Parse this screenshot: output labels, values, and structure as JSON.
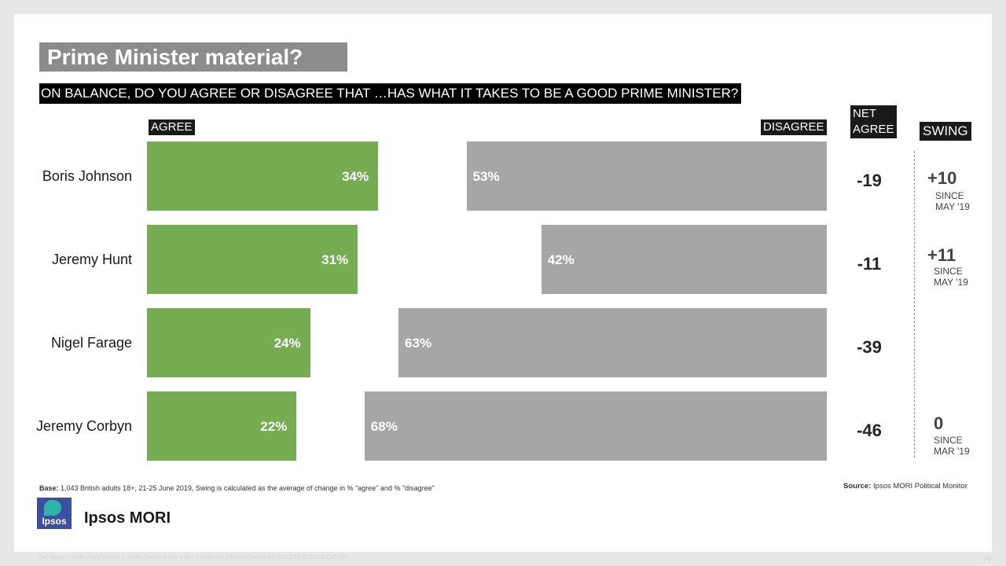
{
  "title": "Prime Minister material?",
  "question": "ON BALANCE, DO YOU AGREE OR DISAGREE THAT …HAS WHAT IT TAKES TO BE A GOOD PRIME MINISTER?",
  "headers": {
    "agree": "AGREE",
    "disagree": "DISAGREE",
    "net_line1": "NET",
    "net_line2": "AGREE",
    "swing": "SWING"
  },
  "chart_data": {
    "type": "bar",
    "orientation": "horizontal",
    "categories": [
      "Boris Johnson",
      "Jeremy Hunt",
      "Nigel Farage",
      "Jeremy Corbyn"
    ],
    "series": [
      {
        "name": "AGREE",
        "values": [
          34,
          31,
          24,
          22
        ]
      },
      {
        "name": "DISAGREE",
        "values": [
          53,
          42,
          63,
          68
        ]
      }
    ],
    "value_labels": {
      "agree": [
        "34%",
        "31%",
        "24%",
        "22%"
      ],
      "disagree": [
        "53%",
        "42%",
        "63%",
        "68%"
      ]
    },
    "net_agree": [
      "-19",
      "-11",
      "-39",
      "-46"
    ],
    "swing": [
      {
        "value": "+10",
        "since": "SINCE",
        "period": "MAY '19"
      },
      {
        "value": "+11",
        "since": "SINCE",
        "period": "MAY '19"
      },
      {
        "value": "",
        "since": "",
        "period": ""
      },
      {
        "value": "0",
        "since": "SINCE",
        "period": "MAR '19"
      }
    ],
    "colors": {
      "agree": "#77ad52",
      "disagree": "#a6a6a6"
    }
  },
  "base_label": "Base:",
  "base_text": "1,043 British adults 18+, 21-25 June 2019, Swing is calculated as the average of change in % \"agree\" and % \"disagree\"",
  "source_label": "Source:",
  "source_text": "Ipsos MORI Political Monitor",
  "logo_text": "Ipsos",
  "brand": "Ipsos MORI",
  "footer": "Doc Name | Month Year | Version 1 | Public | Internal Use Only | Confidential | Strictly Confidential (DELETE CLASSIFICATION)",
  "page_number": "25"
}
